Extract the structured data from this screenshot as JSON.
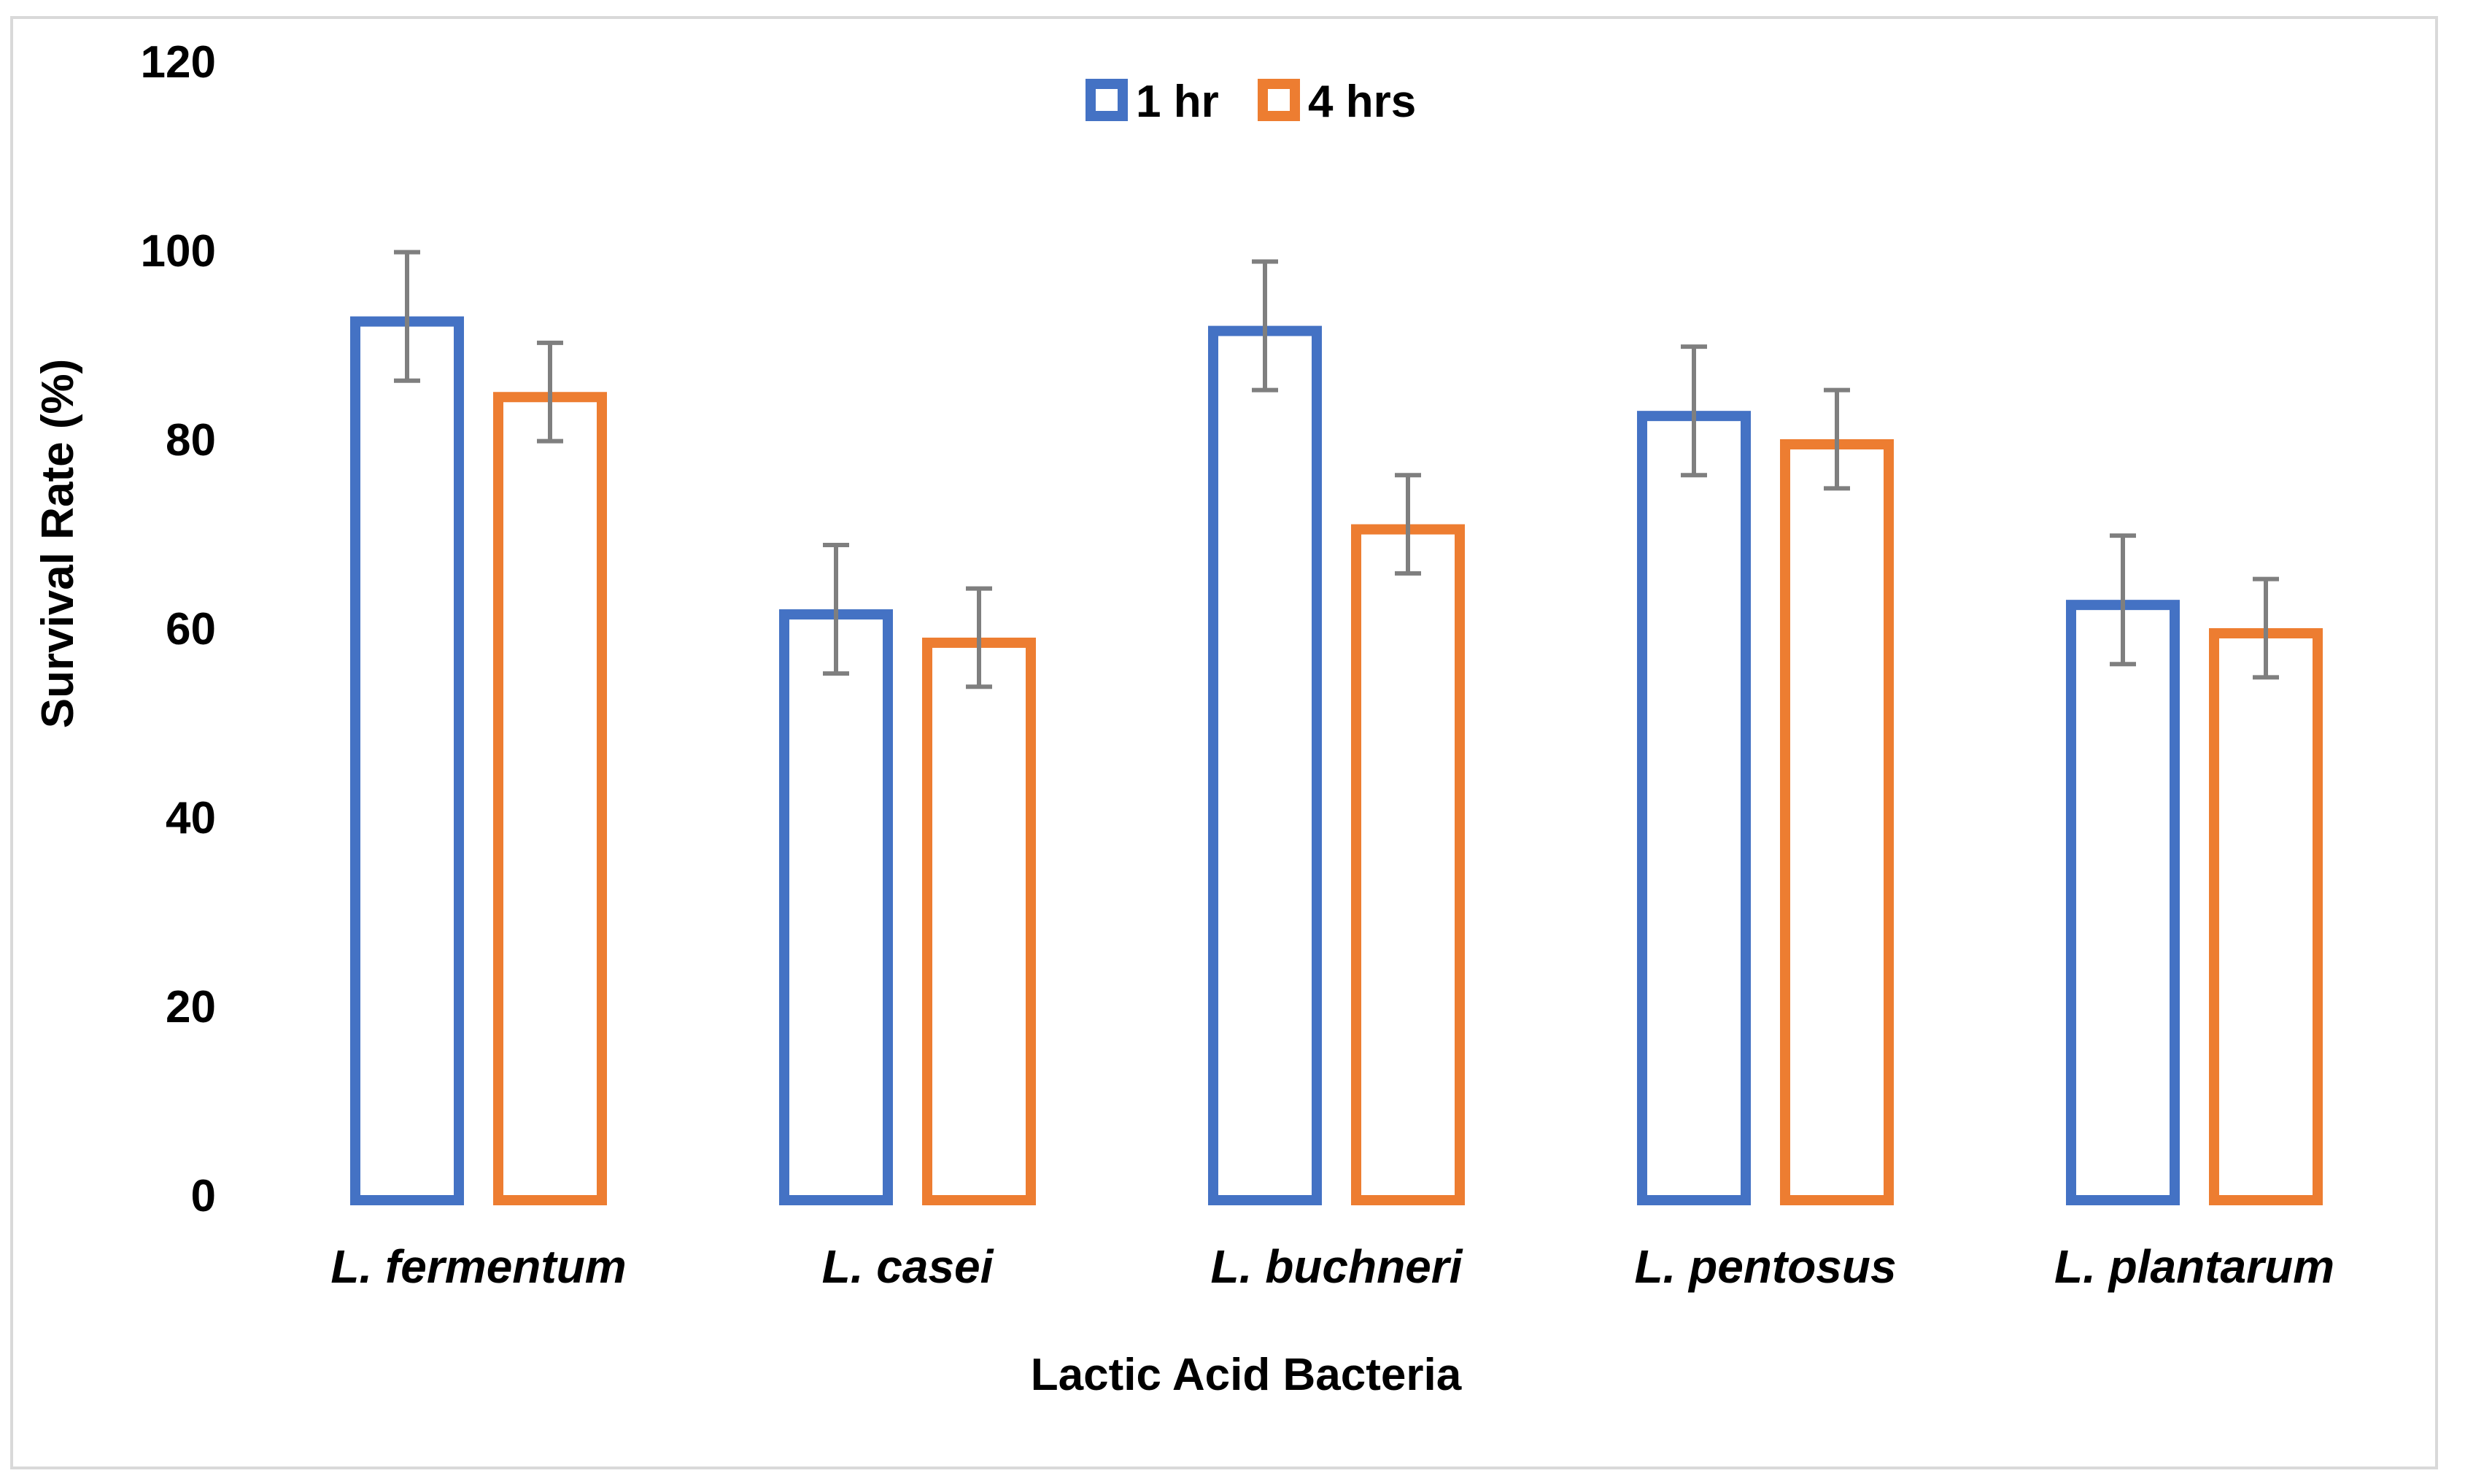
{
  "chart_data": {
    "type": "bar",
    "title": "",
    "xlabel": "Lactic Acid Bacteria",
    "ylabel": "Survival Rate (%)",
    "ylim": [
      0,
      120
    ],
    "yticks": [
      "0",
      "20",
      "40",
      "60",
      "80",
      "100",
      "120"
    ],
    "grid": false,
    "legend_position": "top-center",
    "categories": [
      "L. fermentum",
      "L. casei",
      "L. buchneri",
      "L. pentosus",
      "L. plantarum"
    ],
    "series": [
      {
        "name": "1 hr",
        "color": "#4472c4",
        "values": [
          93,
          62,
          92,
          83,
          63
        ],
        "errors": [
          6.8,
          6.8,
          6.8,
          6.8,
          6.8
        ]
      },
      {
        "name": "4 hrs",
        "color": "#ed7d31",
        "values": [
          85,
          59,
          71,
          80,
          60
        ],
        "errors": [
          5.2,
          5.2,
          5.2,
          5.2,
          5.2
        ]
      }
    ],
    "error_bar_color": "#7f7f7f"
  }
}
